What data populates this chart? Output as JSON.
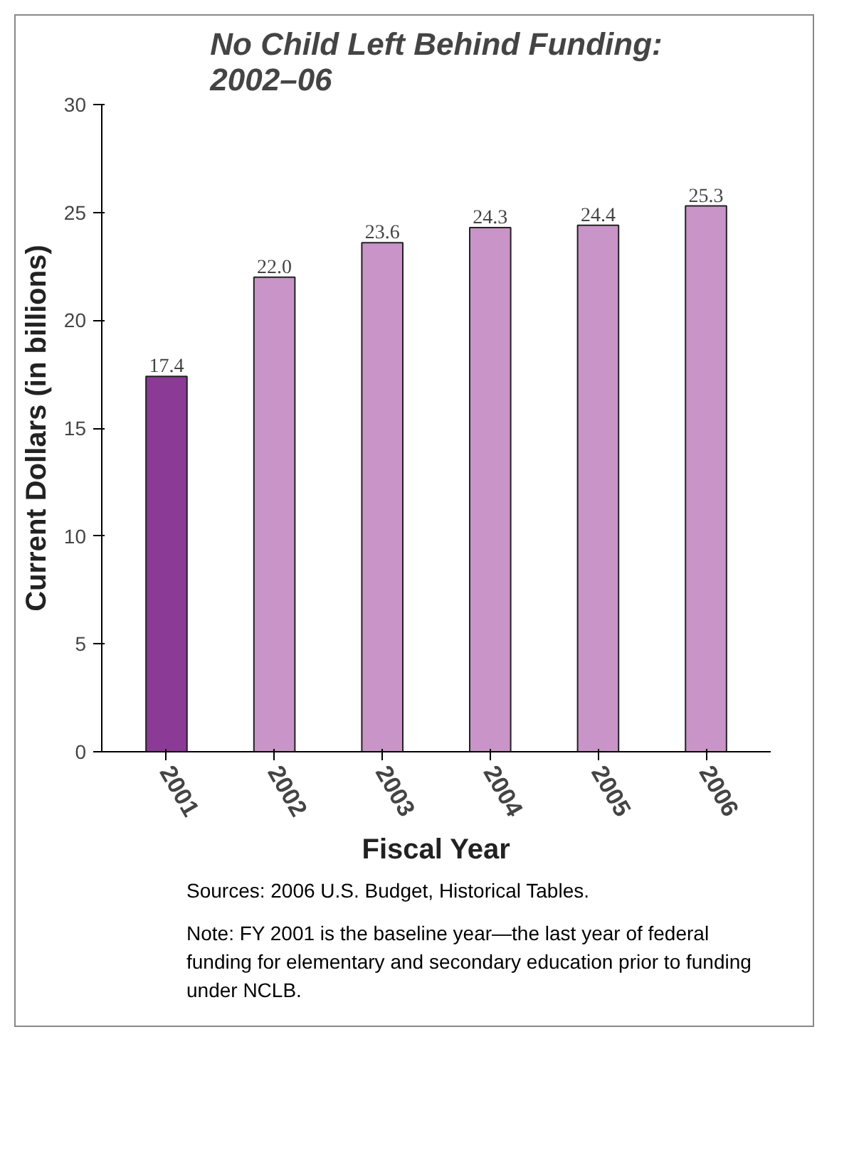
{
  "chart_data": {
    "type": "bar",
    "title": "No Child Left Behind Funding:\n2002–06",
    "xlabel": "Fiscal Year",
    "ylabel": "Current Dollars (in billions)",
    "categories": [
      "2001",
      "2002",
      "2003",
      "2004",
      "2005",
      "2006"
    ],
    "values": [
      17.4,
      22.0,
      23.6,
      24.3,
      24.4,
      25.3
    ],
    "value_labels": [
      "17.4",
      "22.0",
      "23.6",
      "24.3",
      "24.4",
      "25.3"
    ],
    "colors": [
      "#8b3a96",
      "#c994c7",
      "#c994c7",
      "#c994c7",
      "#c994c7",
      "#c994c7"
    ],
    "ylim": [
      0,
      30
    ],
    "yticks": [
      0,
      5,
      10,
      15,
      20,
      25,
      30
    ],
    "grid": false,
    "annotations": [
      "Sources:  2006 U.S. Budget, Historical Tables.",
      "Note:  FY 2001 is the baseline year—the last year of federal funding for elementary and secondary education prior to funding under NCLB."
    ]
  }
}
